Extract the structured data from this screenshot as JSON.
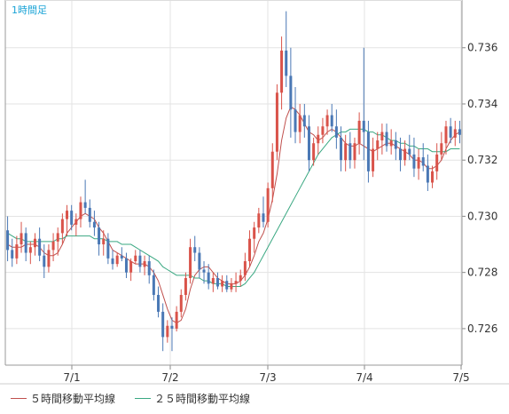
{
  "chart_data": {
    "type": "candlestick",
    "title": "1時間足",
    "x_ticks": [
      "7/1",
      "7/2",
      "7/3",
      "7/4",
      "7/5"
    ],
    "y_ticks": [
      "0.726",
      "0.728",
      "0.730",
      "0.732",
      "0.734",
      "0.736"
    ],
    "ylim": [
      0.7247,
      0.7377
    ],
    "grid": true,
    "legend_position": "bottom-left",
    "up_color": "#d9534a",
    "down_color": "#4a78b5",
    "candles": [
      [
        0.7295,
        0.73,
        0.7284,
        0.7288
      ],
      [
        0.7288,
        0.7292,
        0.7282,
        0.7285
      ],
      [
        0.7285,
        0.7293,
        0.7283,
        0.729
      ],
      [
        0.729,
        0.7298,
        0.7287,
        0.7294
      ],
      [
        0.7294,
        0.7296,
        0.7284,
        0.7287
      ],
      [
        0.7287,
        0.7291,
        0.7283,
        0.7289
      ],
      [
        0.7289,
        0.7294,
        0.7286,
        0.7292
      ],
      [
        0.7292,
        0.7296,
        0.7284,
        0.7286
      ],
      [
        0.7286,
        0.729,
        0.7278,
        0.7282
      ],
      [
        0.7282,
        0.729,
        0.728,
        0.7288
      ],
      [
        0.7288,
        0.7294,
        0.7284,
        0.7291
      ],
      [
        0.7291,
        0.7296,
        0.7286,
        0.7294
      ],
      [
        0.7294,
        0.7301,
        0.729,
        0.7299
      ],
      [
        0.7299,
        0.7304,
        0.7293,
        0.7302
      ],
      [
        0.7302,
        0.7304,
        0.7295,
        0.7297
      ],
      [
        0.7297,
        0.7301,
        0.7293,
        0.7299
      ],
      [
        0.7299,
        0.7307,
        0.7296,
        0.7305
      ],
      [
        0.7305,
        0.7313,
        0.7301,
        0.7303
      ],
      [
        0.7303,
        0.7306,
        0.7296,
        0.7298
      ],
      [
        0.7298,
        0.7302,
        0.7293,
        0.7296
      ],
      [
        0.7296,
        0.7298,
        0.7286,
        0.729
      ],
      [
        0.729,
        0.7295,
        0.7286,
        0.7292
      ],
      [
        0.7292,
        0.7294,
        0.7283,
        0.7285
      ],
      [
        0.7285,
        0.7288,
        0.7281,
        0.7283
      ],
      [
        0.7283,
        0.7287,
        0.7282,
        0.7286
      ],
      [
        0.7286,
        0.7289,
        0.7284,
        0.7285
      ],
      [
        0.7285,
        0.7287,
        0.7278,
        0.728
      ],
      [
        0.728,
        0.7285,
        0.7277,
        0.7284
      ],
      [
        0.7284,
        0.7288,
        0.7283,
        0.7286
      ],
      [
        0.7286,
        0.7288,
        0.728,
        0.7282
      ],
      [
        0.7282,
        0.7286,
        0.7279,
        0.7284
      ],
      [
        0.7284,
        0.7286,
        0.7276,
        0.7279
      ],
      [
        0.7279,
        0.7281,
        0.727,
        0.7272
      ],
      [
        0.7272,
        0.7275,
        0.7264,
        0.7266
      ],
      [
        0.7266,
        0.7269,
        0.7252,
        0.7257
      ],
      [
        0.7257,
        0.7263,
        0.7255,
        0.7261
      ],
      [
        0.7261,
        0.7264,
        0.7252,
        0.726
      ],
      [
        0.726,
        0.7268,
        0.7259,
        0.7266
      ],
      [
        0.7266,
        0.7274,
        0.7264,
        0.7272
      ],
      [
        0.7272,
        0.728,
        0.727,
        0.7278
      ],
      [
        0.7278,
        0.7292,
        0.7276,
        0.7289
      ],
      [
        0.7289,
        0.7293,
        0.7284,
        0.7287
      ],
      [
        0.7287,
        0.7289,
        0.7278,
        0.7281
      ],
      [
        0.7281,
        0.7284,
        0.7276,
        0.728
      ],
      [
        0.728,
        0.7283,
        0.7274,
        0.7276
      ],
      [
        0.7276,
        0.728,
        0.7273,
        0.7278
      ],
      [
        0.7278,
        0.728,
        0.7274,
        0.7275
      ],
      [
        0.7275,
        0.7279,
        0.7273,
        0.7277
      ],
      [
        0.7277,
        0.7279,
        0.7273,
        0.7274
      ],
      [
        0.7274,
        0.7278,
        0.7273,
        0.7276
      ],
      [
        0.7276,
        0.728,
        0.7273,
        0.7277
      ],
      [
        0.7277,
        0.7281,
        0.7275,
        0.7279
      ],
      [
        0.7279,
        0.7287,
        0.7277,
        0.7284
      ],
      [
        0.7284,
        0.7295,
        0.7282,
        0.7292
      ],
      [
        0.7292,
        0.7298,
        0.7287,
        0.7296
      ],
      [
        0.7296,
        0.7303,
        0.7294,
        0.7301
      ],
      [
        0.7301,
        0.7307,
        0.7296,
        0.7298
      ],
      [
        0.7298,
        0.7312,
        0.7296,
        0.731
      ],
      [
        0.731,
        0.7326,
        0.7305,
        0.7323
      ],
      [
        0.7323,
        0.7347,
        0.732,
        0.7344
      ],
      [
        0.7344,
        0.7364,
        0.7338,
        0.7359
      ],
      [
        0.7359,
        0.7373,
        0.7346,
        0.735
      ],
      [
        0.735,
        0.736,
        0.7328,
        0.7338
      ],
      [
        0.7338,
        0.7346,
        0.7326,
        0.733
      ],
      [
        0.733,
        0.734,
        0.7326,
        0.7336
      ],
      [
        0.7336,
        0.734,
        0.7328,
        0.7332
      ],
      [
        0.7332,
        0.7336,
        0.7316,
        0.732
      ],
      [
        0.732,
        0.7328,
        0.7318,
        0.7326
      ],
      [
        0.7326,
        0.7332,
        0.7322,
        0.7329
      ],
      [
        0.7329,
        0.7335,
        0.7326,
        0.7332
      ],
      [
        0.7332,
        0.7338,
        0.7329,
        0.7336
      ],
      [
        0.7336,
        0.734,
        0.733,
        0.7332
      ],
      [
        0.7332,
        0.7338,
        0.7324,
        0.7328
      ],
      [
        0.7328,
        0.7332,
        0.7316,
        0.732
      ],
      [
        0.732,
        0.7329,
        0.7316,
        0.7326
      ],
      [
        0.7326,
        0.733,
        0.7317,
        0.732
      ],
      [
        0.732,
        0.7328,
        0.7317,
        0.7326
      ],
      [
        0.7326,
        0.7337,
        0.7322,
        0.7334
      ],
      [
        0.7334,
        0.736,
        0.732,
        0.733
      ],
      [
        0.733,
        0.7334,
        0.7312,
        0.7316
      ],
      [
        0.7316,
        0.7328,
        0.7314,
        0.7324
      ],
      [
        0.7324,
        0.733,
        0.732,
        0.7327
      ],
      [
        0.7327,
        0.7333,
        0.7322,
        0.733
      ],
      [
        0.733,
        0.7333,
        0.7323,
        0.7325
      ],
      [
        0.7325,
        0.7331,
        0.7322,
        0.7327
      ],
      [
        0.7327,
        0.733,
        0.732,
        0.7324
      ],
      [
        0.7324,
        0.7328,
        0.7316,
        0.732
      ],
      [
        0.732,
        0.7327,
        0.7318,
        0.7324
      ],
      [
        0.7324,
        0.7329,
        0.732,
        0.7322
      ],
      [
        0.7322,
        0.7328,
        0.7314,
        0.7317
      ],
      [
        0.7317,
        0.7324,
        0.7313,
        0.7321
      ],
      [
        0.7321,
        0.7326,
        0.7316,
        0.7318
      ],
      [
        0.7318,
        0.7322,
        0.7309,
        0.7312
      ],
      [
        0.7312,
        0.7318,
        0.731,
        0.7316
      ],
      [
        0.7316,
        0.7326,
        0.7313,
        0.7322
      ],
      [
        0.7322,
        0.733,
        0.732,
        0.7326
      ],
      [
        0.7326,
        0.7334,
        0.7322,
        0.7332
      ],
      [
        0.7332,
        0.7335,
        0.7326,
        0.7328
      ],
      [
        0.7328,
        0.7334,
        0.7325,
        0.7331
      ],
      [
        0.7331,
        0.7334,
        0.7326,
        0.7329
      ]
    ],
    "series": [
      {
        "name": "５時間移動平均線",
        "color": "#c0504d",
        "values": [
          0.729,
          0.7289,
          0.7289,
          0.7289,
          0.729,
          0.729,
          0.729,
          0.7289,
          0.7287,
          0.7286,
          0.7286,
          0.7287,
          0.729,
          0.7294,
          0.7296,
          0.7298,
          0.73,
          0.7301,
          0.73,
          0.7299,
          0.7296,
          0.7294,
          0.7291,
          0.7288,
          0.7287,
          0.7286,
          0.7285,
          0.7284,
          0.7283,
          0.7283,
          0.7283,
          0.7282,
          0.728,
          0.7277,
          0.7272,
          0.7267,
          0.7263,
          0.7262,
          0.7263,
          0.7267,
          0.7274,
          0.7279,
          0.7281,
          0.7282,
          0.7282,
          0.728,
          0.7278,
          0.7277,
          0.7276,
          0.7276,
          0.7276,
          0.7277,
          0.7279,
          0.7282,
          0.7286,
          0.7291,
          0.7294,
          0.7299,
          0.7306,
          0.7315,
          0.7327,
          0.7335,
          0.7339,
          0.7338,
          0.7336,
          0.7333,
          0.733,
          0.7329,
          0.7327,
          0.7328,
          0.733,
          0.7331,
          0.733,
          0.7328,
          0.7326,
          0.7325,
          0.7325,
          0.7326,
          0.7325,
          0.7324,
          0.7323,
          0.7324,
          0.7325,
          0.7326,
          0.7326,
          0.7325,
          0.7324,
          0.7323,
          0.7322,
          0.732,
          0.732,
          0.7319,
          0.7317,
          0.7317,
          0.7318,
          0.732,
          0.7324,
          0.7327,
          0.7329,
          0.733
        ]
      },
      {
        "name": "２５時間移動平均線",
        "color": "#3aa882",
        "values": [
          0.7294,
          0.7293,
          0.7292,
          0.7292,
          0.7291,
          0.7291,
          0.7291,
          0.7291,
          0.7291,
          0.7291,
          0.7291,
          0.7292,
          0.7292,
          0.7293,
          0.7293,
          0.7293,
          0.7293,
          0.7293,
          0.7293,
          0.7292,
          0.7292,
          0.7292,
          0.7291,
          0.7291,
          0.7291,
          0.729,
          0.729,
          0.729,
          0.7289,
          0.7288,
          0.7287,
          0.7286,
          0.7285,
          0.7284,
          0.7282,
          0.7281,
          0.728,
          0.7279,
          0.7279,
          0.7279,
          0.7279,
          0.7278,
          0.7278,
          0.7277,
          0.7277,
          0.7276,
          0.7276,
          0.7276,
          0.7275,
          0.7275,
          0.7275,
          0.7275,
          0.7276,
          0.7278,
          0.728,
          0.7283,
          0.7286,
          0.7289,
          0.7292,
          0.7295,
          0.7298,
          0.7301,
          0.7304,
          0.7307,
          0.731,
          0.7313,
          0.7316,
          0.7319,
          0.7322,
          0.7324,
          0.7326,
          0.7328,
          0.7329,
          0.733,
          0.733,
          0.7331,
          0.7331,
          0.7331,
          0.7331,
          0.733,
          0.733,
          0.7329,
          0.7329,
          0.7328,
          0.7327,
          0.7327,
          0.7326,
          0.7326,
          0.7325,
          0.7325,
          0.7324,
          0.7324,
          0.7324,
          0.7323,
          0.7323,
          0.7323,
          0.7323,
          0.7324,
          0.7324,
          0.7324
        ]
      }
    ]
  }
}
